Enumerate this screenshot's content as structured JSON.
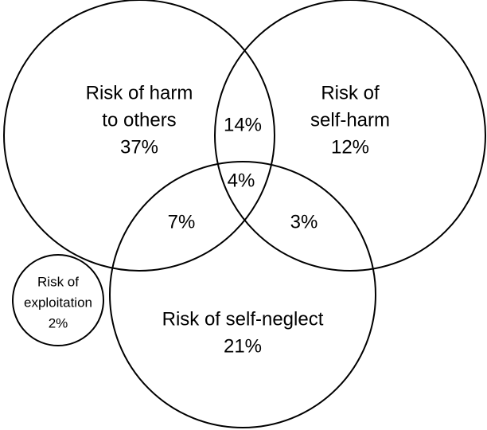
{
  "sets": [
    {
      "label": [
        "Risk of harm",
        "to others"
      ],
      "value": "37%"
    },
    {
      "label": [
        "Risk of",
        "self-harm"
      ],
      "value": "12%"
    },
    {
      "label": [
        "Risk of self-neglect"
      ],
      "value": "21%"
    },
    {
      "label": [
        "Risk of",
        "exploitation"
      ],
      "value": "2%"
    }
  ],
  "overlaps": [
    {
      "value": "14%"
    },
    {
      "value": "4%"
    },
    {
      "value": "7%"
    },
    {
      "value": "3%"
    }
  ]
}
